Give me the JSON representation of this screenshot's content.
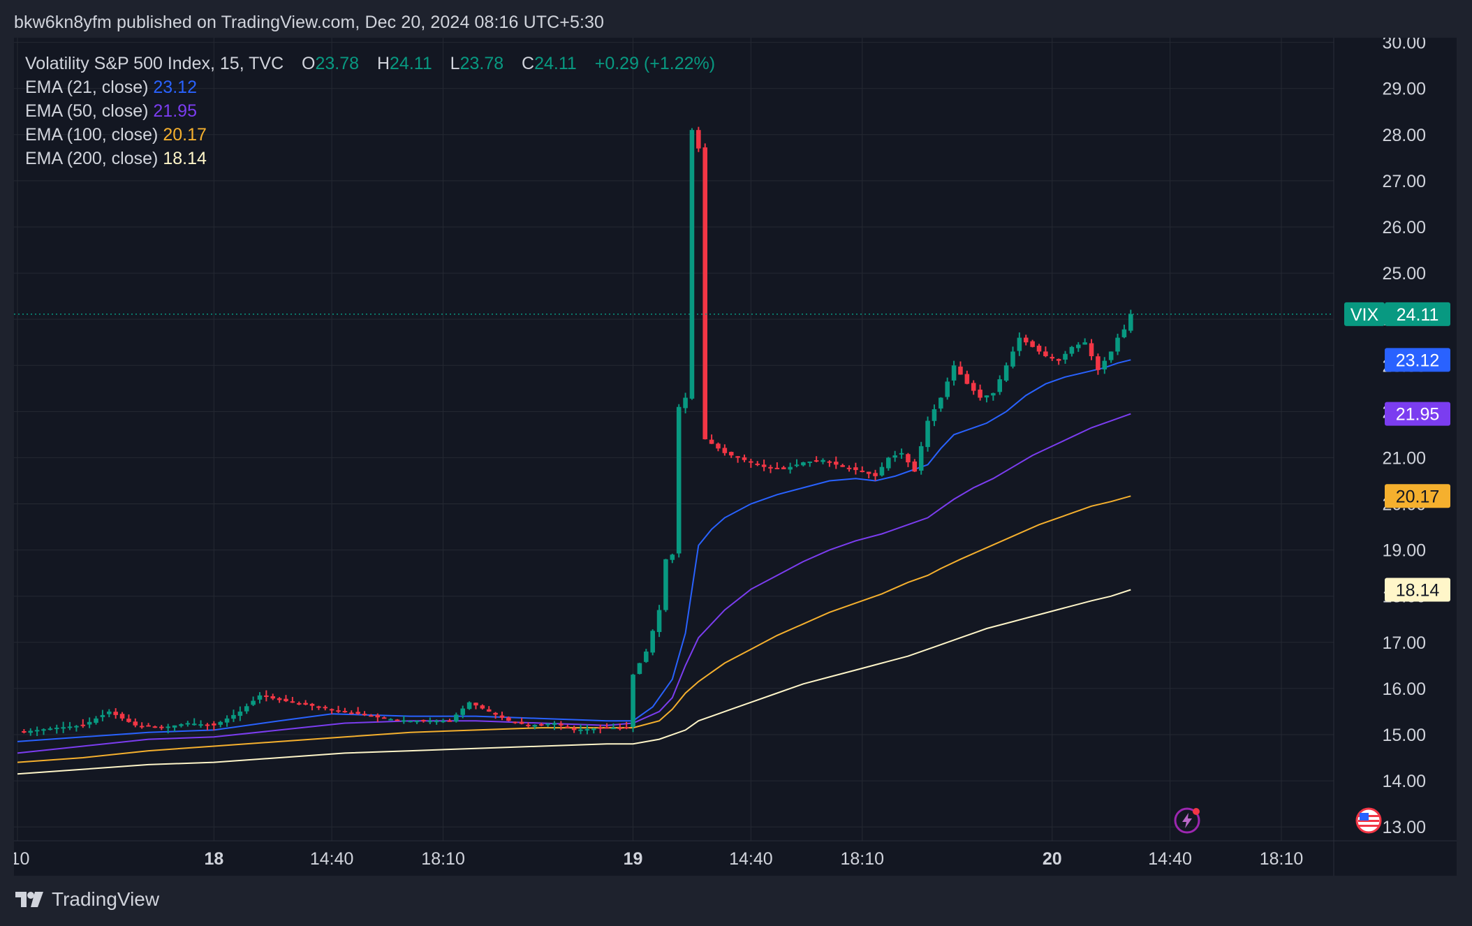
{
  "header": {
    "text": "bkw6kn8yfm published on TradingView.com, Dec 20, 2024 08:16 UTC+5:30"
  },
  "legend": {
    "symbol": "Volatility S&P 500 Index, 15, TVC",
    "ohlc": [
      {
        "key": "O",
        "value": "23.78"
      },
      {
        "key": "H",
        "value": "24.11"
      },
      {
        "key": "L",
        "value": "23.78"
      },
      {
        "key": "C",
        "value": "24.11"
      }
    ],
    "change": "+0.29 (+1.22%)",
    "ema": [
      {
        "label": "EMA (21, close)",
        "value": "23.12",
        "color": "#2962ff"
      },
      {
        "label": "EMA (50, close)",
        "value": "21.95",
        "color": "#7b3df0"
      },
      {
        "label": "EMA (100, close)",
        "value": "20.17",
        "color": "#f5b02e"
      },
      {
        "label": "EMA (200, close)",
        "value": "18.14",
        "color": "#fff6c9"
      }
    ]
  },
  "footer": {
    "brand": "TradingView"
  },
  "colors": {
    "up": "#089981",
    "down": "#f23645",
    "grid": "#252933",
    "text": "#d1d4dc",
    "bg": "#131722"
  },
  "chart_data": {
    "type": "candlestick",
    "title": "Volatility S&P 500 Index, 15, TVC",
    "ylim": [
      12.7,
      30.1
    ],
    "y_ticks": [
      {
        "value": 30,
        "label": "30.00"
      },
      {
        "value": 29,
        "label": "29.00"
      },
      {
        "value": 28,
        "label": "28.00"
      },
      {
        "value": 27,
        "label": "27.00"
      },
      {
        "value": 26,
        "label": "26.00"
      },
      {
        "value": 25,
        "label": "25.00"
      },
      {
        "value": 24,
        "label": "24.00"
      },
      {
        "value": 23,
        "label": "23.00"
      },
      {
        "value": 22,
        "label": "22.00"
      },
      {
        "value": 21,
        "label": "21.00"
      },
      {
        "value": 20,
        "label": "20.00"
      },
      {
        "value": 19,
        "label": "19.00"
      },
      {
        "value": 18,
        "label": "18.00"
      },
      {
        "value": 17,
        "label": "17.00"
      },
      {
        "value": 16,
        "label": "16.00"
      },
      {
        "value": 15,
        "label": "15.00"
      },
      {
        "value": 14,
        "label": "14.00"
      },
      {
        "value": 13,
        "label": "13.00"
      }
    ],
    "xlim": [
      0,
      193
    ],
    "x_ticks": [
      {
        "index": 0,
        "label": ":10",
        "bold": false
      },
      {
        "index": 30,
        "label": "18",
        "bold": true
      },
      {
        "index": 48,
        "label": "14:40",
        "bold": false
      },
      {
        "index": 65,
        "label": "18:10",
        "bold": false
      },
      {
        "index": 94,
        "label": "19",
        "bold": true
      },
      {
        "index": 112,
        "label": "14:40",
        "bold": false
      },
      {
        "index": 129,
        "label": "18:10",
        "bold": false
      },
      {
        "index": 158,
        "label": "20",
        "bold": true
      },
      {
        "index": 176,
        "label": "14:40",
        "bold": false
      },
      {
        "index": 193,
        "label": "18:10",
        "bold": false
      }
    ],
    "last_price": {
      "label": "VIX",
      "value": 24.11,
      "text": "24.11"
    },
    "price_labels": [
      {
        "series": "EMA 21",
        "value": 23.12,
        "text": "23.12",
        "color": "#2962ff",
        "text_color": "#ffffff"
      },
      {
        "series": "EMA 50",
        "value": 21.95,
        "text": "21.95",
        "color": "#7b3df0",
        "text_color": "#ffffff"
      },
      {
        "series": "EMA 100",
        "value": 20.17,
        "text": "20.17",
        "color": "#f5b02e",
        "text_color": "#131722"
      },
      {
        "series": "EMA 200",
        "value": 18.14,
        "text": "18.14",
        "color": "#fff6c9",
        "text_color": "#131722"
      }
    ],
    "candle_anchors": [
      [
        0,
        15.05
      ],
      [
        6,
        15.15
      ],
      [
        10,
        15.2
      ],
      [
        14,
        15.5
      ],
      [
        18,
        15.2
      ],
      [
        22,
        15.15
      ],
      [
        26,
        15.25
      ],
      [
        30,
        15.2
      ],
      [
        34,
        15.5
      ],
      [
        37,
        15.85
      ],
      [
        40,
        15.75
      ],
      [
        44,
        15.65
      ],
      [
        48,
        15.55
      ],
      [
        52,
        15.45
      ],
      [
        56,
        15.35
      ],
      [
        60,
        15.3
      ],
      [
        63,
        15.3
      ],
      [
        66,
        15.3
      ],
      [
        69,
        15.7
      ],
      [
        72,
        15.5
      ],
      [
        75,
        15.3
      ],
      [
        78,
        15.2
      ],
      [
        82,
        15.25
      ],
      [
        85,
        15.1
      ],
      [
        90,
        15.15
      ],
      [
        93,
        15.15
      ],
      [
        94,
        16.3
      ],
      [
        96,
        16.8
      ],
      [
        98,
        17.7
      ],
      [
        99,
        18.8
      ],
      [
        100,
        18.9
      ],
      [
        101,
        22.1
      ],
      [
        102,
        22.3
      ],
      [
        103,
        28.1
      ],
      [
        104,
        27.7
      ],
      [
        105,
        21.4
      ],
      [
        108,
        21.1
      ],
      [
        111,
        20.95
      ],
      [
        114,
        20.8
      ],
      [
        117,
        20.75
      ],
      [
        120,
        20.9
      ],
      [
        123,
        20.95
      ],
      [
        126,
        20.8
      ],
      [
        129,
        20.7
      ],
      [
        131,
        20.6
      ],
      [
        133,
        21.0
      ],
      [
        135,
        21.1
      ],
      [
        137,
        20.7
      ],
      [
        139,
        21.8
      ],
      [
        141,
        22.3
      ],
      [
        143,
        23.0
      ],
      [
        145,
        22.6
      ],
      [
        147,
        22.3
      ],
      [
        149,
        22.4
      ],
      [
        151,
        23.0
      ],
      [
        153,
        23.6
      ],
      [
        155,
        23.4
      ],
      [
        157,
        23.2
      ],
      [
        159,
        23.1
      ],
      [
        161,
        23.4
      ],
      [
        163,
        23.5
      ],
      [
        165,
        22.9
      ],
      [
        167,
        23.3
      ],
      [
        168,
        23.6
      ],
      [
        169,
        23.78
      ],
      [
        170,
        24.11
      ]
    ],
    "series": [
      {
        "name": "EMA (21, close)",
        "color": "#2962ff",
        "points": [
          [
            0,
            14.85
          ],
          [
            10,
            14.95
          ],
          [
            20,
            15.05
          ],
          [
            30,
            15.1
          ],
          [
            40,
            15.3
          ],
          [
            48,
            15.45
          ],
          [
            60,
            15.4
          ],
          [
            70,
            15.4
          ],
          [
            80,
            15.35
          ],
          [
            90,
            15.3
          ],
          [
            94,
            15.3
          ],
          [
            97,
            15.6
          ],
          [
            100,
            16.2
          ],
          [
            102,
            17.2
          ],
          [
            104,
            19.1
          ],
          [
            106,
            19.45
          ],
          [
            108,
            19.7
          ],
          [
            112,
            20.0
          ],
          [
            116,
            20.2
          ],
          [
            120,
            20.35
          ],
          [
            124,
            20.5
          ],
          [
            128,
            20.55
          ],
          [
            131,
            20.5
          ],
          [
            134,
            20.6
          ],
          [
            137,
            20.75
          ],
          [
            139,
            20.85
          ],
          [
            141,
            21.2
          ],
          [
            143,
            21.5
          ],
          [
            145,
            21.6
          ],
          [
            148,
            21.75
          ],
          [
            151,
            22.0
          ],
          [
            154,
            22.35
          ],
          [
            157,
            22.6
          ],
          [
            160,
            22.75
          ],
          [
            163,
            22.85
          ],
          [
            166,
            22.95
          ],
          [
            168,
            23.05
          ],
          [
            170,
            23.12
          ]
        ]
      },
      {
        "name": "EMA (50, close)",
        "color": "#7b3df0",
        "points": [
          [
            0,
            14.6
          ],
          [
            10,
            14.75
          ],
          [
            20,
            14.9
          ],
          [
            30,
            14.95
          ],
          [
            40,
            15.1
          ],
          [
            50,
            15.25
          ],
          [
            60,
            15.3
          ],
          [
            70,
            15.3
          ],
          [
            80,
            15.25
          ],
          [
            90,
            15.2
          ],
          [
            94,
            15.25
          ],
          [
            98,
            15.5
          ],
          [
            100,
            15.8
          ],
          [
            102,
            16.5
          ],
          [
            104,
            17.1
          ],
          [
            108,
            17.7
          ],
          [
            112,
            18.15
          ],
          [
            116,
            18.45
          ],
          [
            120,
            18.75
          ],
          [
            124,
            19.0
          ],
          [
            128,
            19.2
          ],
          [
            132,
            19.35
          ],
          [
            136,
            19.55
          ],
          [
            139,
            19.7
          ],
          [
            141,
            19.9
          ],
          [
            143,
            20.1
          ],
          [
            146,
            20.35
          ],
          [
            149,
            20.55
          ],
          [
            152,
            20.8
          ],
          [
            155,
            21.05
          ],
          [
            158,
            21.25
          ],
          [
            161,
            21.45
          ],
          [
            164,
            21.65
          ],
          [
            167,
            21.8
          ],
          [
            170,
            21.95
          ]
        ]
      },
      {
        "name": "EMA (100, close)",
        "color": "#f5b02e",
        "points": [
          [
            0,
            14.4
          ],
          [
            10,
            14.5
          ],
          [
            20,
            14.65
          ],
          [
            30,
            14.75
          ],
          [
            40,
            14.85
          ],
          [
            50,
            14.95
          ],
          [
            60,
            15.05
          ],
          [
            70,
            15.1
          ],
          [
            80,
            15.15
          ],
          [
            90,
            15.15
          ],
          [
            94,
            15.15
          ],
          [
            98,
            15.3
          ],
          [
            100,
            15.55
          ],
          [
            102,
            15.9
          ],
          [
            104,
            16.15
          ],
          [
            108,
            16.55
          ],
          [
            112,
            16.85
          ],
          [
            116,
            17.15
          ],
          [
            120,
            17.4
          ],
          [
            124,
            17.65
          ],
          [
            128,
            17.85
          ],
          [
            132,
            18.05
          ],
          [
            136,
            18.3
          ],
          [
            139,
            18.45
          ],
          [
            141,
            18.6
          ],
          [
            144,
            18.8
          ],
          [
            148,
            19.05
          ],
          [
            152,
            19.3
          ],
          [
            156,
            19.55
          ],
          [
            160,
            19.75
          ],
          [
            164,
            19.95
          ],
          [
            167,
            20.05
          ],
          [
            170,
            20.17
          ]
        ]
      },
      {
        "name": "EMA (200, close)",
        "color": "#fff6c9",
        "points": [
          [
            0,
            14.15
          ],
          [
            10,
            14.25
          ],
          [
            20,
            14.35
          ],
          [
            30,
            14.4
          ],
          [
            40,
            14.5
          ],
          [
            50,
            14.6
          ],
          [
            60,
            14.65
          ],
          [
            70,
            14.7
          ],
          [
            80,
            14.75
          ],
          [
            90,
            14.8
          ],
          [
            94,
            14.8
          ],
          [
            98,
            14.9
          ],
          [
            102,
            15.1
          ],
          [
            104,
            15.3
          ],
          [
            108,
            15.5
          ],
          [
            112,
            15.7
          ],
          [
            116,
            15.9
          ],
          [
            120,
            16.1
          ],
          [
            124,
            16.25
          ],
          [
            128,
            16.4
          ],
          [
            132,
            16.55
          ],
          [
            136,
            16.7
          ],
          [
            140,
            16.9
          ],
          [
            144,
            17.1
          ],
          [
            148,
            17.3
          ],
          [
            152,
            17.45
          ],
          [
            156,
            17.6
          ],
          [
            160,
            17.75
          ],
          [
            164,
            17.9
          ],
          [
            167,
            18.0
          ],
          [
            170,
            18.14
          ]
        ]
      }
    ]
  }
}
